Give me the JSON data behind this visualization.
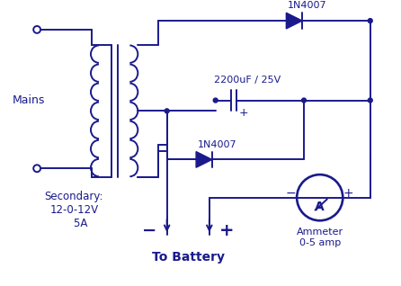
{
  "bg_color": "#ffffff",
  "line_color": "#1a1a8c",
  "text_color": "#1a1a8c",
  "figsize": [
    4.46,
    3.18
  ],
  "dpi": 100,
  "title": "To Battery",
  "mains_label": "Mains",
  "secondary_label": "Secondary:\n12-0-12V\n    5A",
  "diode1_label": "1N4007",
  "diode2_label": "1N4007",
  "cap_label": "2200uF / 25V",
  "ammeter_label": "Ammeter\n0-5 amp",
  "ammeter_A": "A"
}
